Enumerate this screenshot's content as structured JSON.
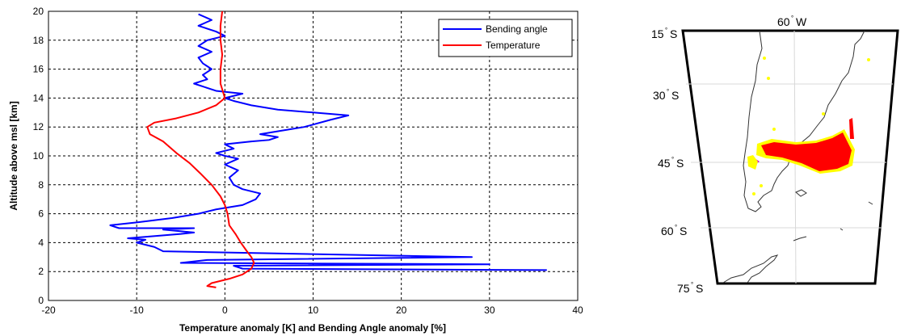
{
  "chart_data": [
    {
      "type": "line",
      "xlabel": "Temperature anomaly [K] and Bending Angle anomaly [%]",
      "ylabel": "Altitude above msl [km]",
      "xlim": [
        -20,
        40
      ],
      "ylim": [
        0,
        20
      ],
      "xticks": [
        "-20",
        "-10",
        "0",
        "10",
        "20",
        "30",
        "40"
      ],
      "yticks": [
        "0",
        "2",
        "4",
        "6",
        "8",
        "10",
        "12",
        "14",
        "16",
        "18",
        "20"
      ],
      "grid": true,
      "legend_position": "top-right",
      "series": [
        {
          "name": "Bending angle",
          "color": "#0000ff",
          "points": [
            [
              36.5,
              2.1
            ],
            [
              2.0,
              2.2
            ],
            [
              1.0,
              2.4
            ],
            [
              30.0,
              2.5
            ],
            [
              -5.0,
              2.6
            ],
            [
              -2.0,
              2.8
            ],
            [
              28.0,
              3.0
            ],
            [
              -7.0,
              3.4
            ],
            [
              -8.0,
              3.7
            ],
            [
              -10.0,
              4.0
            ],
            [
              -9.0,
              4.2
            ],
            [
              -11.0,
              4.3
            ],
            [
              -5.0,
              4.6
            ],
            [
              -3.5,
              4.7
            ],
            [
              -7.0,
              4.9
            ],
            [
              -3.5,
              5.0
            ],
            [
              -12.0,
              5.0
            ],
            [
              -13.0,
              5.2
            ],
            [
              -10.0,
              5.4
            ],
            [
              -6.0,
              5.7
            ],
            [
              -3.0,
              6.0
            ],
            [
              -1.0,
              6.3
            ],
            [
              2.0,
              6.6
            ],
            [
              3.5,
              7.0
            ],
            [
              4.0,
              7.4
            ],
            [
              2.0,
              7.7
            ],
            [
              1.0,
              8.0
            ],
            [
              0.5,
              8.5
            ],
            [
              1.5,
              9.0
            ],
            [
              0.0,
              9.4
            ],
            [
              1.5,
              9.8
            ],
            [
              0.0,
              10.0
            ],
            [
              -1.0,
              10.2
            ],
            [
              1.0,
              10.5
            ],
            [
              0.0,
              10.8
            ],
            [
              3.0,
              11.0
            ],
            [
              5.0,
              11.1
            ],
            [
              6.0,
              11.3
            ],
            [
              4.0,
              11.5
            ],
            [
              7.0,
              11.8
            ],
            [
              9.0,
              12.0
            ],
            [
              12.0,
              12.5
            ],
            [
              14.0,
              12.8
            ],
            [
              10.0,
              13.0
            ],
            [
              6.0,
              13.2
            ],
            [
              3.0,
              13.5
            ],
            [
              1.0,
              13.8
            ],
            [
              0.0,
              14.0
            ],
            [
              2.0,
              14.3
            ],
            [
              -1.0,
              14.5
            ],
            [
              -2.5,
              14.8
            ],
            [
              -3.5,
              15.0
            ],
            [
              -2.0,
              15.3
            ],
            [
              -2.5,
              15.6
            ],
            [
              -1.5,
              16.0
            ],
            [
              -2.5,
              16.4
            ],
            [
              -3.0,
              16.8
            ],
            [
              -1.5,
              17.2
            ],
            [
              -3.0,
              17.6
            ],
            [
              -2.0,
              18.0
            ],
            [
              0.0,
              18.3
            ],
            [
              -1.0,
              18.6
            ],
            [
              -3.0,
              19.0
            ],
            [
              -1.5,
              19.4
            ],
            [
              -3.0,
              19.8
            ]
          ]
        },
        {
          "name": "Temperature",
          "color": "#ff0000",
          "points": [
            [
              -1.0,
              0.9
            ],
            [
              -2.0,
              1.0
            ],
            [
              -1.5,
              1.2
            ],
            [
              0.5,
              1.5
            ],
            [
              2.0,
              1.8
            ],
            [
              3.0,
              2.2
            ],
            [
              3.3,
              2.6
            ],
            [
              3.0,
              3.0
            ],
            [
              2.5,
              3.4
            ],
            [
              1.8,
              4.0
            ],
            [
              1.2,
              4.6
            ],
            [
              0.5,
              5.2
            ],
            [
              0.3,
              6.0
            ],
            [
              0.0,
              6.6
            ],
            [
              -0.5,
              7.2
            ],
            [
              -1.5,
              8.0
            ],
            [
              -2.8,
              8.8
            ],
            [
              -4.0,
              9.5
            ],
            [
              -5.5,
              10.2
            ],
            [
              -7.0,
              11.0
            ],
            [
              -8.5,
              11.5
            ],
            [
              -8.8,
              12.0
            ],
            [
              -8.0,
              12.3
            ],
            [
              -5.5,
              12.6
            ],
            [
              -3.0,
              13.0
            ],
            [
              -1.0,
              13.5
            ],
            [
              0.0,
              14.0
            ],
            [
              -0.2,
              14.4
            ],
            [
              -0.5,
              15.0
            ],
            [
              -0.5,
              16.0
            ],
            [
              -0.3,
              17.0
            ],
            [
              -0.5,
              18.0
            ],
            [
              -0.5,
              19.0
            ],
            [
              -0.3,
              20.0
            ]
          ]
        }
      ]
    },
    {
      "type": "map",
      "longitude_labels": [
        {
          "deg": "60",
          "hemi": "W"
        }
      ],
      "latitude_labels": [
        {
          "deg": "15",
          "hemi": "S"
        },
        {
          "deg": "30",
          "hemi": "S"
        },
        {
          "deg": "45",
          "hemi": "S"
        },
        {
          "deg": "60",
          "hemi": "S"
        },
        {
          "deg": "75",
          "hemi": "S"
        }
      ],
      "colors": {
        "highlight_main": "#ff0000",
        "highlight_edge": "#ffff00",
        "highlight_spot": "#cc00cc"
      }
    }
  ]
}
